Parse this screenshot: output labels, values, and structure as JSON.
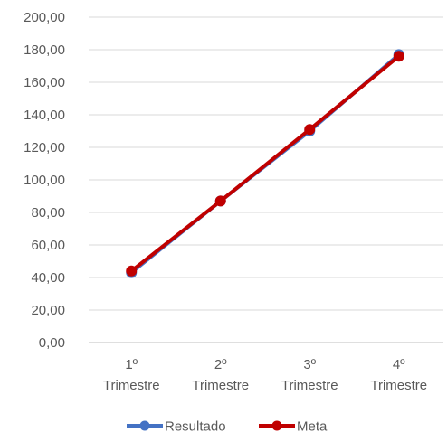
{
  "chart_data": {
    "type": "line",
    "categories": [
      "1º Trimestre",
      "2º Trimestre",
      "3º Trimestre",
      "4º Trimestre"
    ],
    "category_lines": [
      [
        "1º",
        "Trimestre"
      ],
      [
        "2º",
        "Trimestre"
      ],
      [
        "3º",
        "Trimestre"
      ],
      [
        "4º",
        "Trimestre"
      ]
    ],
    "series": [
      {
        "name": "Resultado",
        "values": [
          43,
          87,
          130,
          177
        ],
        "color": "#4472C4"
      },
      {
        "name": "Meta",
        "values": [
          44,
          87,
          131,
          176
        ],
        "color": "#C00000"
      }
    ],
    "ylim": [
      0,
      200
    ],
    "yticks": [
      "0,00",
      "20,00",
      "40,00",
      "60,00",
      "80,00",
      "100,00",
      "120,00",
      "140,00",
      "160,00",
      "180,00",
      "200,00"
    ],
    "grid": true,
    "legend": "bottom",
    "title": "",
    "xlabel": "",
    "ylabel": ""
  }
}
